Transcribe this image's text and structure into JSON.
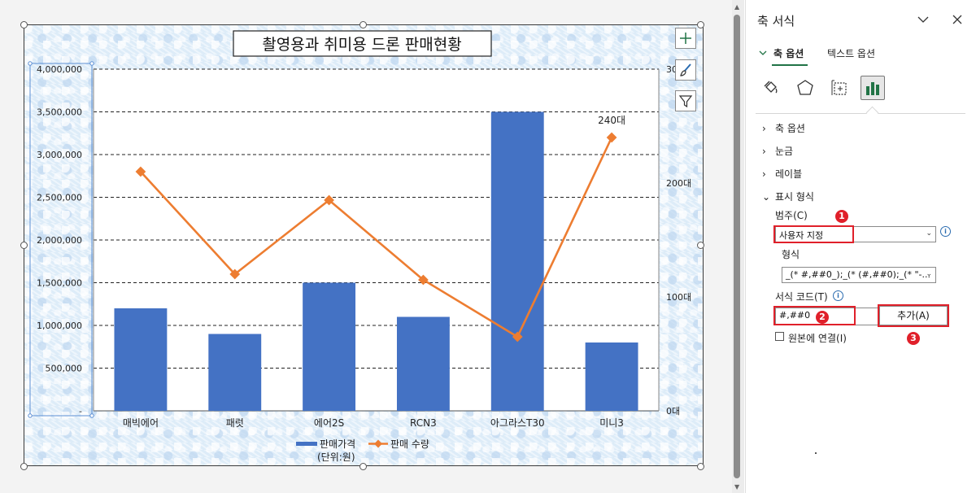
{
  "chart_data": {
    "type": "bar",
    "title": "촬영용과 취미용 드론 판매현황",
    "categories": [
      "매빅에어",
      "패럿",
      "에어2S",
      "RCN3",
      "아그라스T30",
      "미니3"
    ],
    "series": [
      {
        "name": "판매가격\n(단위:원)",
        "type": "bar",
        "axis": "left",
        "color": "#4472c4",
        "values": [
          1200000,
          900000,
          1500000,
          1100000,
          3500000,
          800000
        ]
      },
      {
        "name": "판매 수량",
        "type": "line",
        "axis": "right",
        "color": "#ed7d31",
        "values": [
          210,
          120,
          185,
          115,
          65,
          240
        ]
      }
    ],
    "y_left": {
      "ylim": [
        0,
        4000000
      ],
      "tick_labels": [
        "-",
        "500,000",
        "1,000,000",
        "1,500,000",
        "2,000,000",
        "2,500,000",
        "3,000,000",
        "3,500,000",
        "4,000,000"
      ]
    },
    "y_right": {
      "ylim": [
        0,
        300
      ],
      "tick_labels": [
        "0대",
        "100대",
        "200대",
        "300대"
      ]
    },
    "data_labels": [
      {
        "series": 1,
        "index": 5,
        "text": "240대"
      }
    ],
    "grid": true,
    "legend_position": "bottom",
    "legend_entries": [
      "판매가격",
      "(단위:원)",
      "판매 수량"
    ]
  },
  "pane": {
    "title": "축 서식",
    "tabs": [
      "축 옵션",
      "텍스트 옵션"
    ],
    "sections": [
      "축 옵션",
      "눈금",
      "레이블",
      "표시 형식"
    ],
    "category_label": "범주(C)",
    "category_value": "사용자 지정",
    "format_label": "형식",
    "format_value": "_(* #,##0_);_(* (#,##0);_(* \"-...",
    "format_code_label": "서식 코드(T)",
    "format_code_value": "#,##0",
    "add_button": "추가(A)",
    "link_source_label": "원본에 연결(I)",
    "badges": [
      "1",
      "2",
      "3"
    ]
  },
  "colors": {
    "accent": "#217346",
    "highlight": "#e0202a",
    "bar": "#4472c4",
    "line": "#ed7d31"
  }
}
